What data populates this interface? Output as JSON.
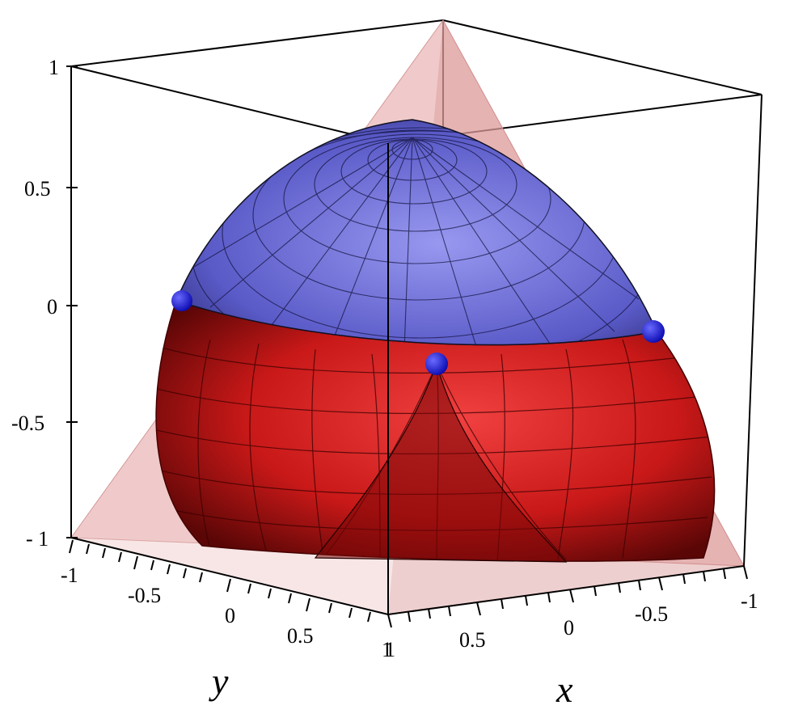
{
  "plot": {
    "z_ticks": [
      "1",
      "0.5",
      "0",
      "-0.5",
      "- 1"
    ],
    "y_ticks": [
      "-1",
      "-0.5",
      "0",
      "0.5",
      "1"
    ],
    "x_ticks": [
      "1",
      "0.5",
      "0",
      "-0.5",
      "-1"
    ],
    "x_label": "x",
    "y_label": "y",
    "colors": {
      "tetra_face": "#e8b3b3",
      "red_surface": "#c41414",
      "blue_cap": "#6b6bd6",
      "points": "#1010e0"
    }
  }
}
